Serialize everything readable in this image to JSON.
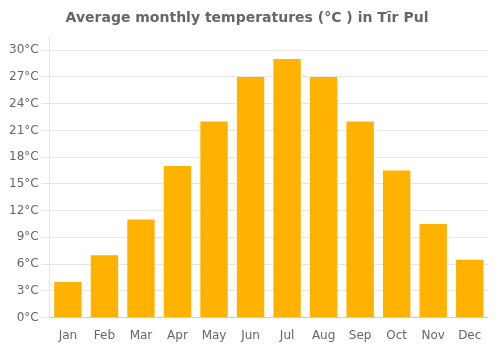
{
  "chart_data": {
    "type": "bar",
    "title": "Average monthly temperatures (°C ) in Tīr Pul",
    "categories": [
      "Jan",
      "Feb",
      "Mar",
      "Apr",
      "May",
      "Jun",
      "Jul",
      "Aug",
      "Sep",
      "Oct",
      "Nov",
      "Dec"
    ],
    "values": [
      4,
      7,
      11,
      17,
      22,
      27,
      29,
      27,
      22,
      16.5,
      10.5,
      6.5
    ],
    "color": "#FFB300",
    "ylim": [
      0,
      31.5
    ],
    "yticks": [
      {
        "value": 0,
        "label": "0°C"
      },
      {
        "value": 3,
        "label": "3°C"
      },
      {
        "value": 6,
        "label": "6°C"
      },
      {
        "value": 9,
        "label": "9°C"
      },
      {
        "value": 12,
        "label": "12°C"
      },
      {
        "value": 15,
        "label": "15°C"
      },
      {
        "value": 18,
        "label": "18°C"
      },
      {
        "value": 21,
        "label": "21°C"
      },
      {
        "value": 24,
        "label": "24°C"
      },
      {
        "value": 27,
        "label": "27°C"
      },
      {
        "value": 30,
        "label": "30°C"
      }
    ],
    "grid": true
  }
}
